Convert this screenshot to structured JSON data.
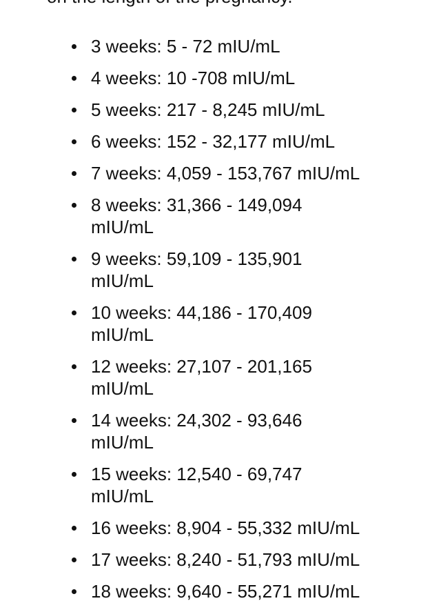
{
  "intro_text": "on the length of the pregnancy.",
  "items": [
    "3 weeks: 5 - 72 mIU/mL",
    "4 weeks: 10 -708 mIU/mL",
    "5 weeks: 217 - 8,245 mIU/mL",
    "6 weeks: 152 - 32,177 mIU/mL",
    "7 weeks: 4,059 - 153,767 mIU/mL",
    "8 weeks: 31,366 - 149,094 mIU/mL",
    "9 weeks: 59,109 - 135,901 mIU/mL",
    "10 weeks: 44,186 - 170,409 mIU/mL",
    "12 weeks: 27,107 - 201,165 mIU/mL",
    "14 weeks: 24,302 - 93,646 mIU/mL",
    "15 weeks: 12,540 - 69,747 mIU/mL",
    "16 weeks: 8,904 - 55,332 mIU/mL",
    "17 weeks: 8,240 - 51,793 mIU/mL",
    "18 weeks: 9,640 - 55,271 mIU/mL"
  ]
}
